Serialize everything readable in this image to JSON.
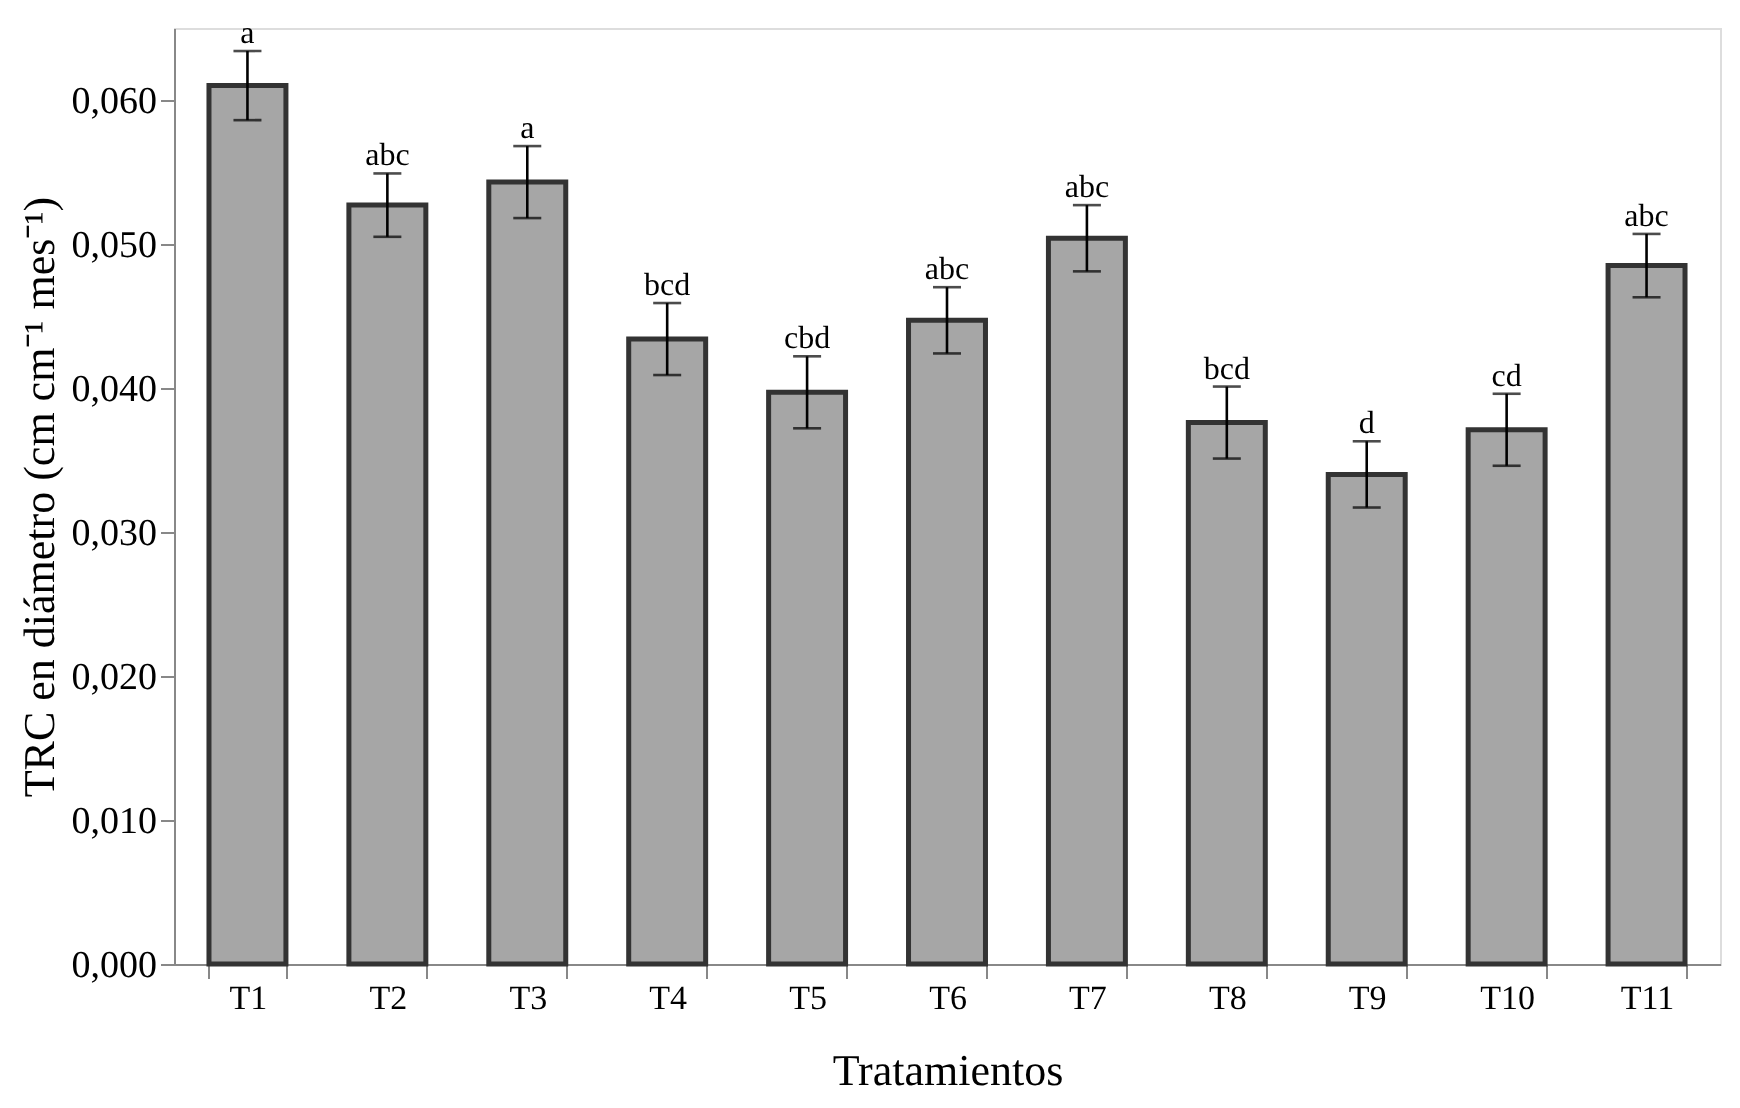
{
  "chart_data": {
    "type": "bar",
    "xlabel": "Tratamientos",
    "ylabel": "TRC en diámetro (cm cm⁻¹ mes⁻¹)",
    "categories": [
      "T1",
      "T2",
      "T3",
      "T4",
      "T5",
      "T6",
      "T7",
      "T8",
      "T9",
      "T10",
      "T11"
    ],
    "values": [
      0.061,
      0.0527,
      0.0543,
      0.0434,
      0.0397,
      0.0447,
      0.0504,
      0.0376,
      0.034,
      0.0371,
      0.0485
    ],
    "errors": [
      0.0024,
      0.0022,
      0.0025,
      0.0025,
      0.0025,
      0.0023,
      0.0023,
      0.0025,
      0.0023,
      0.0025,
      0.0022
    ],
    "color": "#a6a6a6",
    "ylim": [
      0,
      0.065
    ],
    "yticks": [
      {
        "value": 0,
        "label": "0,000"
      },
      {
        "value": 0.01,
        "label": "0,010"
      },
      {
        "value": 0.02,
        "label": "0,020"
      },
      {
        "value": 0.03,
        "label": "0,030"
      },
      {
        "value": 0.04,
        "label": "0,040"
      },
      {
        "value": 0.05,
        "label": "0,050"
      },
      {
        "value": 0.06,
        "label": "0,060"
      }
    ],
    "grid": false,
    "annotations": [
      {
        "text": "a",
        "x": "T1",
        "y": 0.0634
      },
      {
        "text": "abc",
        "x": "T2",
        "y": 0.0549
      },
      {
        "text": "a",
        "x": "T3",
        "y": 0.0568
      },
      {
        "text": "bcd",
        "x": "T4",
        "y": 0.0459
      },
      {
        "text": "cbd",
        "x": "T5",
        "y": 0.0422
      },
      {
        "text": "abc",
        "x": "T6",
        "y": 0.047
      },
      {
        "text": "abc",
        "x": "T7",
        "y": 0.0527
      },
      {
        "text": "bcd",
        "x": "T8",
        "y": 0.0401
      },
      {
        "text": "d",
        "x": "T9",
        "y": 0.0363
      },
      {
        "text": "cd",
        "x": "T10",
        "y": 0.0396
      },
      {
        "text": "abc",
        "x": "T11",
        "y": 0.0507
      }
    ]
  }
}
